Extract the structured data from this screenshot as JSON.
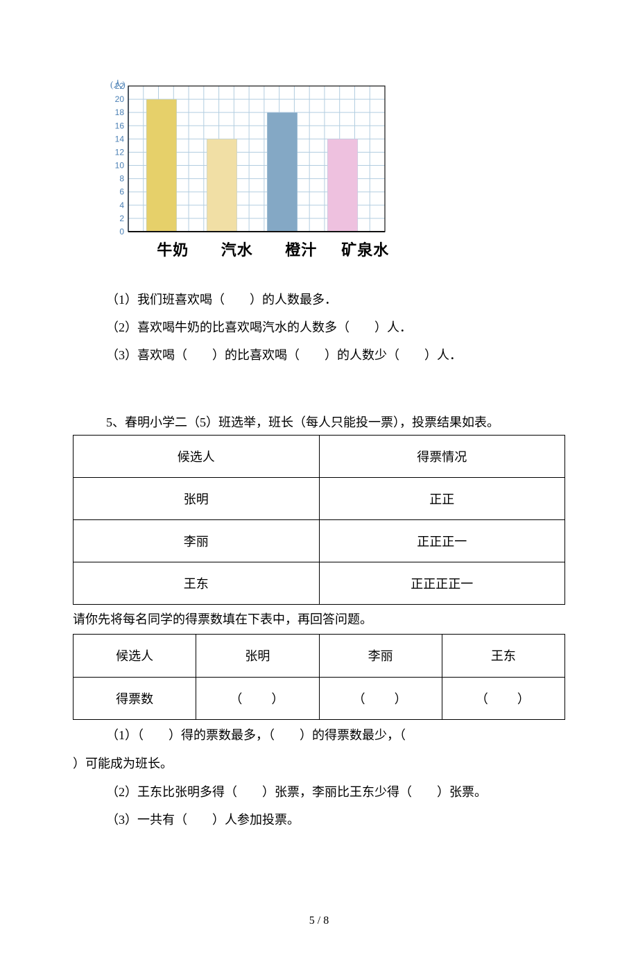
{
  "chart": {
    "type": "bar",
    "ylabel": "(人)",
    "categories": [
      "牛奶",
      "汽水",
      "橙汁",
      "矿泉水"
    ],
    "values": [
      20,
      14,
      18,
      14
    ],
    "bar_colors": [
      "#e6d06a",
      "#f1dfa5",
      "#84a8c5",
      "#eec1df"
    ],
    "ymax": 22,
    "ytick_step": 2,
    "tick_color": "#4b80b5",
    "grid_color": "#b2cde0",
    "axis_color": "#4b80b5",
    "border_color": "#111111",
    "bg_color": "#ffffff",
    "cat_fontsize": 22
  },
  "questions1": {
    "q1": "（1）我们班喜欢喝（　　）的人数最多．",
    "q2": "（2）喜欢喝牛奶的比喜欢喝汽水的人数多（　　）人．",
    "q3": "（3）喜欢喝（　　）的比喜欢喝（　　）的人数少（　　）人．"
  },
  "section5": {
    "lead": "5、春明小学二（5）班选举，班长（每人只能投一票），投票结果如表。",
    "col1": "候选人",
    "col2": "得票情况",
    "rows": [
      {
        "name": "张明",
        "tally": "正正"
      },
      {
        "name": "李丽",
        "tally": "正正正一"
      },
      {
        "name": "王东",
        "tally": "正正正正一"
      }
    ],
    "middle": "请你先将每名同学的得票数填在下表中，再回答问题。",
    "table2_col0": "候选人",
    "table2_cols": [
      "张明",
      "李丽",
      "王东"
    ],
    "table2_row0": "得票数",
    "blank": "（　　）",
    "q1a": "（1）（　　）得的票数最多，（　　）的得票数最少，（　",
    "q1b": "）可能成为班长。",
    "q2": "（2）王东比张明多得（　　）张票，李丽比王东少得（　　）张票。",
    "q3": "（3）一共有（　　）人参加投票。"
  },
  "pager": "5 / 8"
}
